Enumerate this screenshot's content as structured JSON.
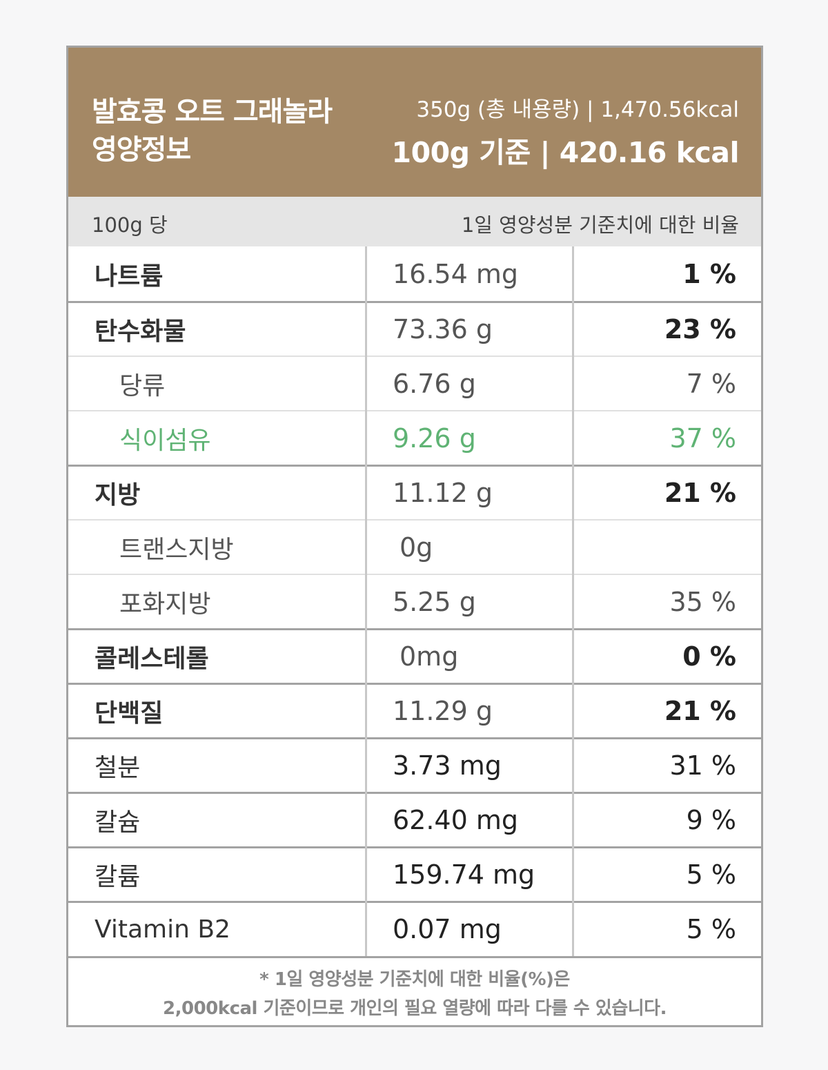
{
  "header": {
    "title_line1": "발효콩 오트 그래놀라",
    "title_line2": "영양정보",
    "total": "350g (총 내용량) | 1,470.56kcal",
    "base": "100g 기준 | 420.16 kcal"
  },
  "subheader": {
    "left": "100g 당",
    "right": "1일 영양성분 기준치에 대한 비율"
  },
  "rows": [
    {
      "name": "나트륨",
      "amount": "16.54 mg",
      "percent": "1 %"
    },
    {
      "name": "탄수화물",
      "amount": "73.36 g",
      "percent": "23 %"
    },
    {
      "name": "당류",
      "amount": "6.76 g",
      "percent": "7 %"
    },
    {
      "name": "식이섬유",
      "amount": "9.26 g",
      "percent": "37 %"
    },
    {
      "name": "지방",
      "amount": "11.12 g",
      "percent": "21 %"
    },
    {
      "name": "트랜스지방",
      "amount": "0g",
      "percent": ""
    },
    {
      "name": "포화지방",
      "amount": "5.25 g",
      "percent": "35 %"
    },
    {
      "name": "콜레스테롤",
      "amount": "0mg",
      "percent": "0 %"
    },
    {
      "name": "단백질",
      "amount": "11.29 g",
      "percent": "21 %"
    },
    {
      "name": "철분",
      "amount": "3.73 mg",
      "percent": "31 %"
    },
    {
      "name": "칼슘",
      "amount": "62.40 mg",
      "percent": "9 %"
    },
    {
      "name": "칼륨",
      "amount": "159.74 mg",
      "percent": "5 %"
    },
    {
      "name": "Vitamin B2",
      "amount": "0.07 mg",
      "percent": "5 %"
    }
  ],
  "footer": {
    "line1": "* 1일 영양성분 기준치에 대한 비율(%)은",
    "line2": "2,000kcal 기준이므로 개인의 필요 열량에 따라 다를 수 있습니다."
  },
  "colors": {
    "header_bg": "#a48865",
    "subheader_bg": "#e5e5e5",
    "highlight_green": "#5fb374"
  }
}
